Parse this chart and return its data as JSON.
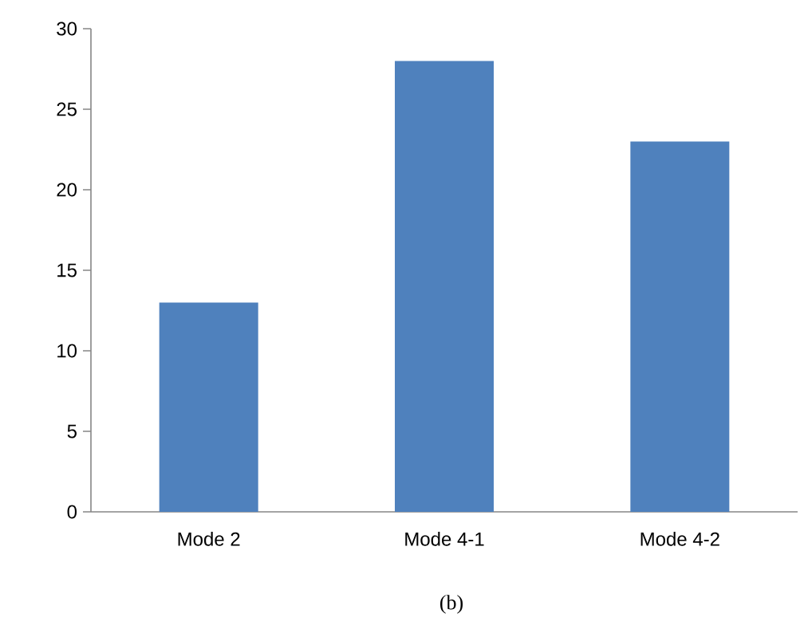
{
  "chart_data": {
    "type": "bar",
    "categories": [
      "Mode 2",
      "Mode 4-1",
      "Mode 4-2"
    ],
    "values": [
      13,
      28,
      23
    ],
    "color": "#4f81bd",
    "ylim": [
      0,
      30
    ],
    "yticks": [
      0,
      5,
      10,
      15,
      20,
      25,
      30
    ],
    "annotations": [
      "(b)"
    ]
  }
}
